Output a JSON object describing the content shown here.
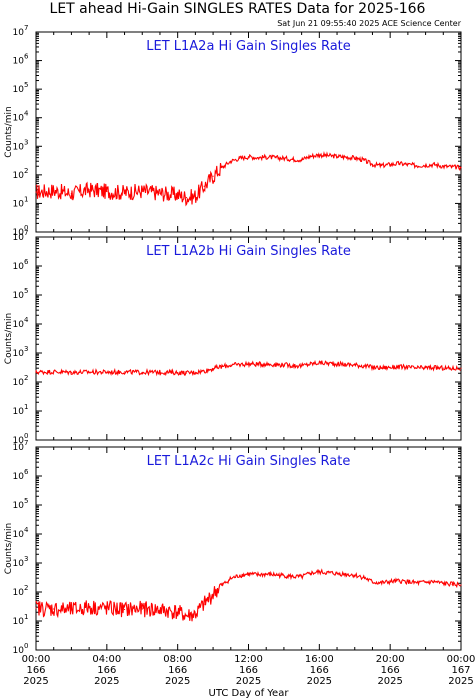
{
  "header": {
    "title": "LET ahead Hi-Gain SINGLES RATES Data for 2025-166",
    "timestamp": "Sat Jun 21 09:55:40 2025 ACE Science Center"
  },
  "colors": {
    "series": "#ff0000",
    "panel_title": "#1a1adb",
    "axes": "#000000"
  },
  "chart_data": [
    {
      "type": "line",
      "title": "LET L1A2a Hi Gain Singles Rate",
      "ylabel": "Counts/min",
      "xlabel": "UTC Day of Year",
      "yscale": "log",
      "ylim": [
        1,
        10000000
      ],
      "xlim": [
        0,
        24
      ],
      "x": [
        0,
        1,
        2,
        3,
        4,
        5,
        6,
        7,
        8,
        8.5,
        9,
        9.5,
        10,
        10.5,
        11,
        11.5,
        12,
        12.5,
        13,
        13.5,
        14,
        14.5,
        15,
        15.5,
        16,
        16.5,
        17,
        17.5,
        18,
        18.5,
        19,
        19.5,
        20,
        20.5,
        21,
        21.5,
        22,
        22.5,
        23,
        23.5,
        24
      ],
      "values": [
        25,
        28,
        22,
        30,
        26,
        24,
        27,
        23,
        20,
        16,
        18,
        40,
        90,
        180,
        300,
        380,
        430,
        400,
        420,
        400,
        380,
        350,
        340,
        450,
        500,
        470,
        440,
        420,
        390,
        330,
        230,
        210,
        230,
        250,
        230,
        210,
        220,
        230,
        200,
        190,
        180
      ]
    },
    {
      "type": "line",
      "title": "LET L1A2b Hi Gain Singles Rate",
      "ylabel": "Counts/min",
      "xlabel": "UTC Day of Year",
      "yscale": "log",
      "ylim": [
        1,
        10000000
      ],
      "xlim": [
        0,
        24
      ],
      "x": [
        0,
        1,
        2,
        3,
        4,
        5,
        6,
        7,
        8,
        8.5,
        9,
        9.5,
        10,
        10.5,
        11,
        11.5,
        12,
        12.5,
        13,
        13.5,
        14,
        14.5,
        15,
        15.5,
        16,
        16.5,
        17,
        17.5,
        18,
        18.5,
        19,
        19.5,
        20,
        20.5,
        21,
        21.5,
        22,
        22.5,
        23,
        23.5,
        24
      ],
      "values": [
        220,
        225,
        215,
        220,
        218,
        222,
        215,
        218,
        210,
        205,
        215,
        240,
        290,
        340,
        380,
        400,
        420,
        410,
        415,
        400,
        390,
        370,
        360,
        420,
        460,
        440,
        420,
        400,
        390,
        360,
        320,
        310,
        320,
        330,
        320,
        300,
        310,
        310,
        300,
        290,
        300
      ]
    },
    {
      "type": "line",
      "title": "LET L1A2c Hi Gain Singles Rate",
      "ylabel": "Counts/min",
      "xlabel": "UTC Day of Year",
      "yscale": "log",
      "ylim": [
        1,
        10000000
      ],
      "xlim": [
        0,
        24
      ],
      "x": [
        0,
        1,
        2,
        3,
        4,
        5,
        6,
        7,
        8,
        8.5,
        9,
        9.5,
        10,
        10.5,
        11,
        11.5,
        12,
        12.5,
        13,
        13.5,
        14,
        14.5,
        15,
        15.5,
        16,
        16.5,
        17,
        17.5,
        18,
        18.5,
        19,
        19.5,
        20,
        20.5,
        21,
        21.5,
        22,
        22.5,
        23,
        23.5,
        24
      ],
      "values": [
        28,
        26,
        24,
        30,
        27,
        25,
        26,
        24,
        20,
        15,
        17,
        38,
        85,
        170,
        290,
        370,
        420,
        390,
        410,
        390,
        370,
        340,
        330,
        440,
        490,
        460,
        430,
        410,
        380,
        320,
        220,
        205,
        225,
        240,
        225,
        205,
        215,
        225,
        195,
        185,
        175
      ]
    }
  ],
  "x_axis": {
    "title": "UTC Day of Year",
    "ticks": [
      {
        "x": 0,
        "time": "00:00",
        "doy": "166",
        "year": "2025"
      },
      {
        "x": 4,
        "time": "04:00",
        "doy": "166",
        "year": "2025"
      },
      {
        "x": 8,
        "time": "08:00",
        "doy": "166",
        "year": "2025"
      },
      {
        "x": 12,
        "time": "12:00",
        "doy": "166",
        "year": "2025"
      },
      {
        "x": 16,
        "time": "16:00",
        "doy": "166",
        "year": "2025"
      },
      {
        "x": 20,
        "time": "20:00",
        "doy": "166",
        "year": "2025"
      },
      {
        "x": 24,
        "time": "00:00",
        "doy": "167",
        "year": "2025"
      }
    ]
  },
  "y_axis": {
    "ticks": [
      {
        "base": "10",
        "exp": "0",
        "v": 1
      },
      {
        "base": "10",
        "exp": "1",
        "v": 10
      },
      {
        "base": "10",
        "exp": "2",
        "v": 100
      },
      {
        "base": "10",
        "exp": "3",
        "v": 1000
      },
      {
        "base": "10",
        "exp": "4",
        "v": 10000
      },
      {
        "base": "10",
        "exp": "5",
        "v": 100000
      },
      {
        "base": "10",
        "exp": "6",
        "v": 1000000
      },
      {
        "base": "10",
        "exp": "7",
        "v": 10000000
      }
    ]
  }
}
